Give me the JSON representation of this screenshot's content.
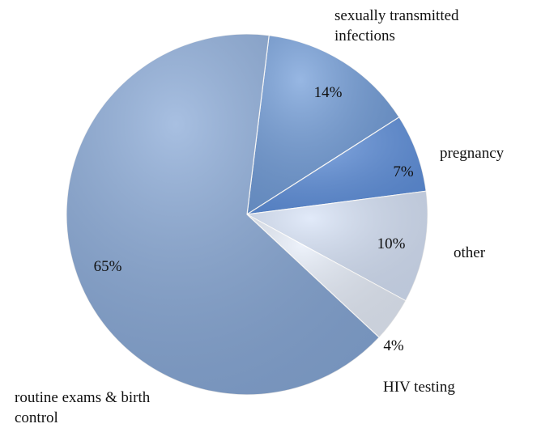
{
  "chart_data": {
    "type": "pie",
    "categories": [
      "sexually transmitted infections",
      "pregnancy",
      "other",
      "HIV testing",
      "routine exams & birth control"
    ],
    "values": [
      14,
      7,
      10,
      4,
      65
    ],
    "value_labels": [
      "14%",
      "7%",
      "10%",
      "4%",
      "65%"
    ],
    "colors": [
      "#6f9bd8",
      "#5d8fdc",
      "#d6e2f7",
      "#e6edf9",
      "#86a7d6"
    ]
  }
}
